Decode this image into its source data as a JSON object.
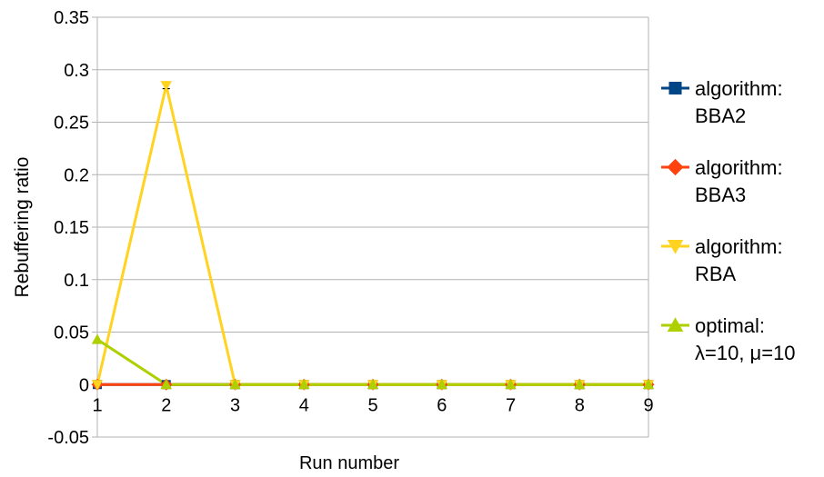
{
  "chart_data": {
    "type": "line",
    "title": "",
    "xlabel": "Run number",
    "ylabel": "Rebuffering ratio",
    "x": [
      1,
      2,
      3,
      4,
      5,
      6,
      7,
      8,
      9
    ],
    "x_tick_labels": [
      "1",
      "2",
      "3",
      "4",
      "5",
      "6",
      "7",
      "8",
      "9"
    ],
    "ylim": [
      -0.05,
      0.35
    ],
    "y_ticks": [
      -0.05,
      0,
      0.05,
      0.1,
      0.15,
      0.2,
      0.25,
      0.3,
      0.35
    ],
    "y_tick_labels": [
      "-0.05",
      "0",
      "0.05",
      "0.1",
      "0.15",
      "0.2",
      "0.25",
      "0.3",
      "0.35"
    ],
    "grid": "horizontal",
    "legend_position": "right",
    "series": [
      {
        "name": "algorithm: BBA2",
        "legend_lines": [
          "algorithm:",
          "BBA2"
        ],
        "color": "#004586",
        "marker": "square",
        "values": [
          0,
          0,
          0,
          0,
          0,
          0,
          0,
          0,
          0
        ]
      },
      {
        "name": "algorithm: BBA3",
        "legend_lines": [
          "algorithm:",
          "BBA3"
        ],
        "color": "#ff420e",
        "marker": "diamond",
        "values": [
          0,
          0,
          0,
          0,
          0,
          0,
          0,
          0,
          0
        ]
      },
      {
        "name": "algorithm: RBA",
        "legend_lines": [
          "algorithm:",
          "RBA"
        ],
        "color": "#ffd320",
        "marker": "triangle-down",
        "values": [
          0,
          0.285,
          0,
          0,
          0,
          0,
          0,
          0,
          0
        ],
        "error": [
          0,
          0.003,
          0,
          0,
          0,
          0,
          0,
          0,
          0
        ]
      },
      {
        "name": "optimal: λ=10, μ=10",
        "legend_lines": [
          "optimal:",
          "λ=10, μ=10"
        ],
        "color": "#aecf00",
        "marker": "triangle-up",
        "values": [
          0.043,
          0,
          0,
          0,
          0,
          0,
          0,
          0,
          0
        ]
      }
    ]
  }
}
